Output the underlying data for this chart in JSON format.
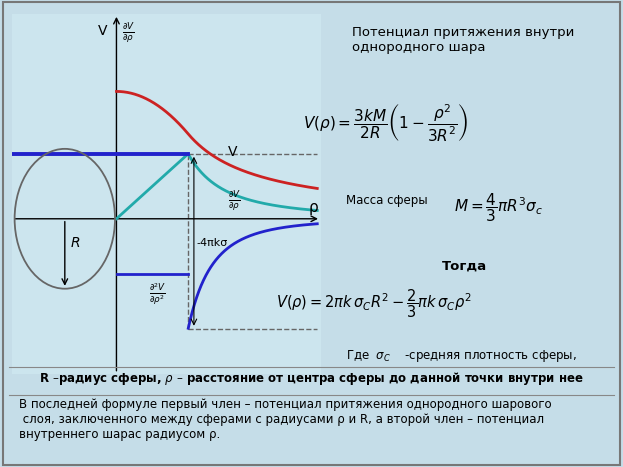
{
  "bg_color": "#c5dde8",
  "plot_bg_color": "#cce5ee",
  "border_color": "#888888",
  "title_text": "Потенциал притяжения внутри\nоднородного шара",
  "label_massa": "Масса сферы",
  "label_togda": "Тогда",
  "label_R_rho": "R –радиус сферы, ρ – расстояние от центра сферы до данной точки внутри нее",
  "bottom_text": "В последней формуле первый член – потенциал притяжения однородного шарового\n слоя, заключенного между сферами с радиусами ρ и R, а второй член – потенциал\nвнутреннего шарас радиусом ρ.",
  "neg4piko": "-4πkσ",
  "V_label": "V",
  "V_axis_label": "V",
  "rho_axis_label": "ρ",
  "R_label": "R",
  "curve_V_color": "#cc2222",
  "curve_dV_color": "#22aaaa",
  "curve_d2V_color": "#2222cc",
  "circle_color": "#666666",
  "hline_color": "#2222cc",
  "dashed_color": "#666666",
  "text_color": "#000000"
}
